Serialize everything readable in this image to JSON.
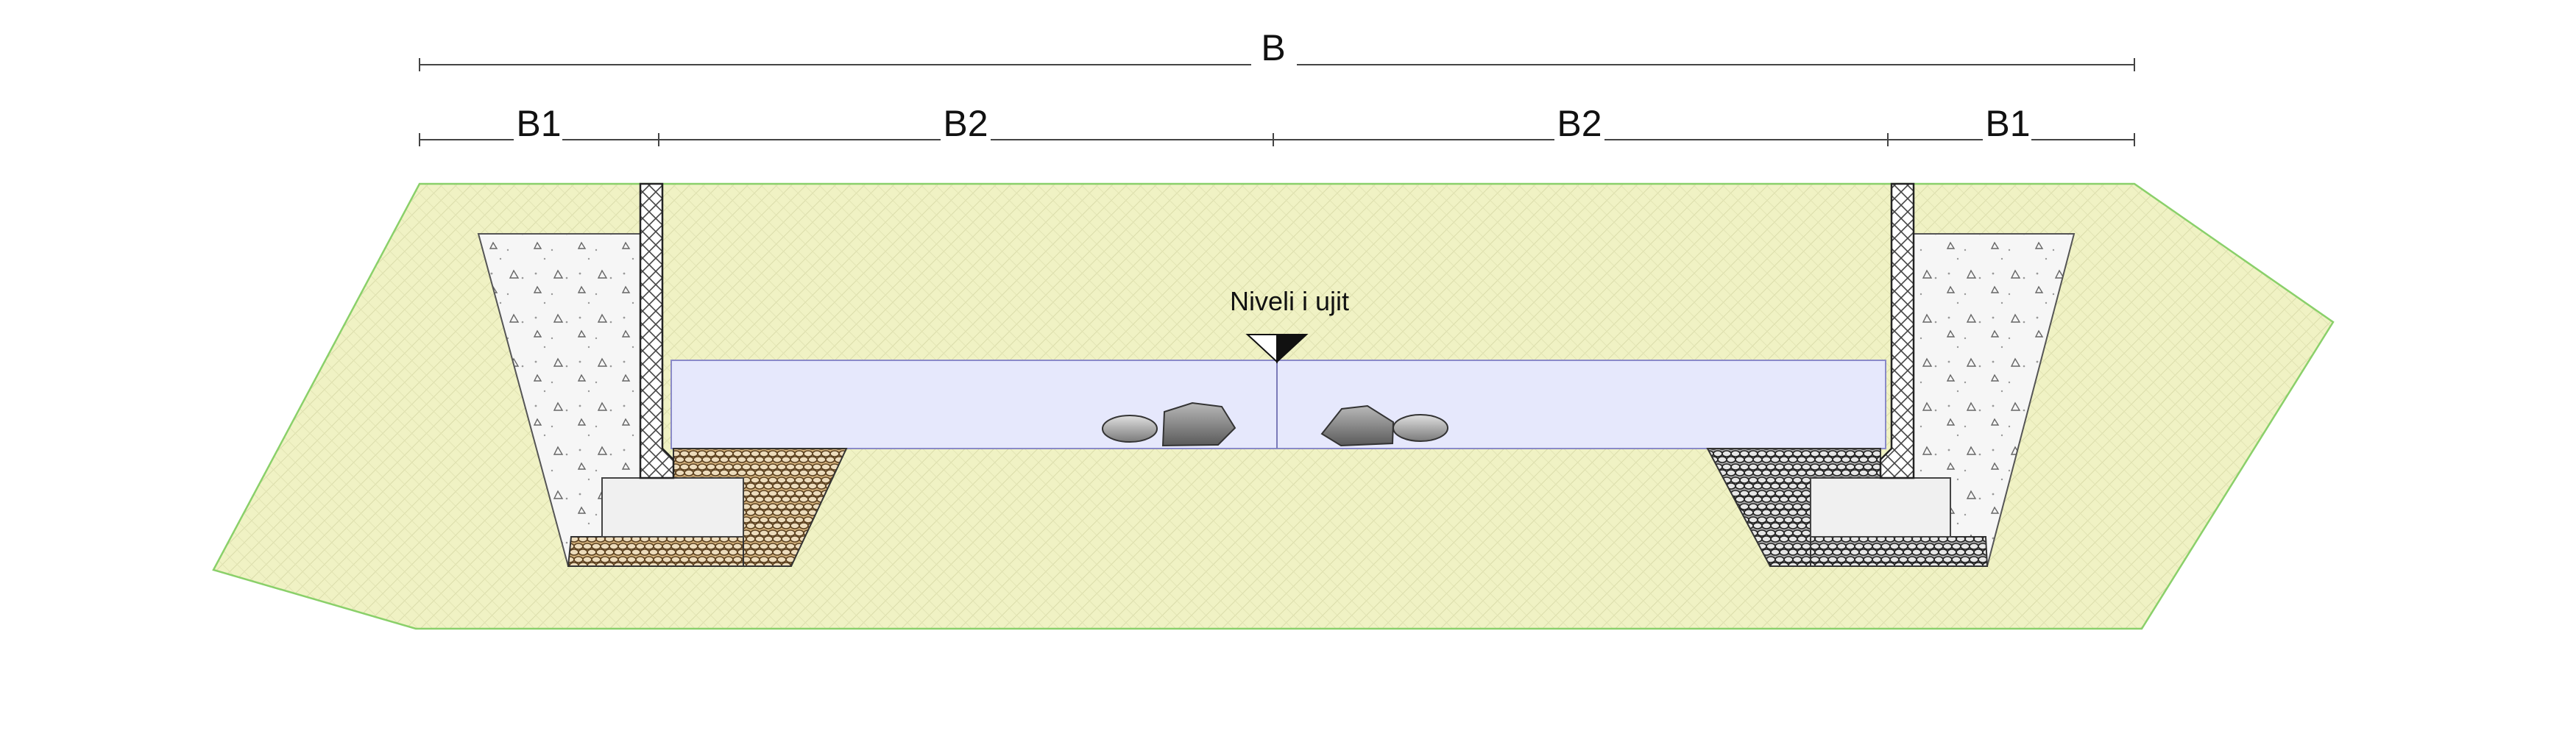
{
  "dimensions": {
    "overall": {
      "label": "B"
    },
    "segments": [
      {
        "label": "B1"
      },
      {
        "label": "B2"
      },
      {
        "label": "B2"
      },
      {
        "label": "B1"
      }
    ]
  },
  "water_level": {
    "label": "Niveli i ujit"
  },
  "colors": {
    "soil": "#f0f2c4",
    "soil_edge": "#8ad06a",
    "water": "#e4e6fb",
    "water_edge": "#8a8ac8",
    "concrete_fill": "#f4f4f4",
    "wall_outline": "#333333",
    "gravel_brown": "#c8a06a",
    "gravel_dark": "#6a6a6a",
    "stone": "#8c8c8c"
  }
}
